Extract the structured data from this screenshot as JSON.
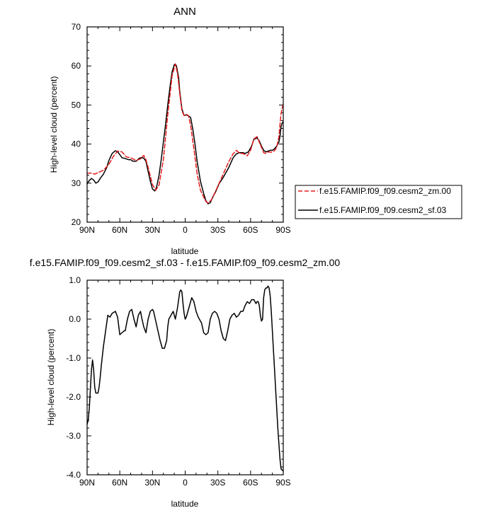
{
  "chart_data": [
    {
      "type": "line",
      "title": "ANN",
      "xlabel": "latitude",
      "ylabel": "High-level cloud (percent)",
      "xlim": [
        90,
        -90
      ],
      "ylim": [
        20,
        70
      ],
      "x_ticks": [
        "90N",
        "60N",
        "30N",
        "0",
        "30S",
        "60S",
        "90S"
      ],
      "y_ticks": [
        "20",
        "30",
        "40",
        "50",
        "60",
        "70"
      ],
      "legend_position": "right",
      "series": [
        {
          "name": "f.e15.FAMIP.f09_f09.cesm2_zm.00",
          "color": "#e41a1c",
          "dash": "dashed",
          "x": [
            90,
            87,
            83,
            80,
            75,
            70,
            66,
            62,
            58,
            54,
            50,
            45,
            41,
            38,
            36,
            34,
            30,
            27,
            24,
            20,
            16,
            12,
            9,
            7,
            5,
            3,
            1,
            -1,
            -3,
            -5,
            -8,
            -11,
            -14,
            -17,
            -19,
            -21,
            -24,
            -28,
            -32,
            -36,
            -40,
            -44,
            -47,
            -50,
            -53,
            -57,
            -60,
            -63,
            -66,
            -68,
            -70,
            -72,
            -74,
            -76,
            -79,
            -82,
            -84,
            -86,
            -87,
            -88,
            -89,
            -90
          ],
          "y": [
            32.5,
            32.6,
            32.3,
            32.7,
            33.3,
            34.8,
            36.8,
            38.2,
            38.0,
            36.7,
            36.5,
            35.8,
            36.2,
            37.1,
            36.0,
            34.0,
            29.6,
            28.2,
            29.5,
            36.0,
            47.5,
            57.5,
            60.5,
            58.0,
            53.0,
            48.5,
            47.3,
            47.6,
            47.3,
            44.8,
            38.8,
            32.3,
            28.2,
            26.4,
            25.3,
            24.9,
            25.7,
            28.0,
            30.5,
            33.0,
            35.5,
            37.5,
            38.4,
            37.6,
            37.6,
            37.0,
            38.4,
            41.3,
            41.9,
            40.5,
            39.2,
            37.8,
            37.6,
            38.0,
            37.9,
            38.3,
            39.2,
            41.8,
            45.0,
            47.8,
            49.2,
            50.3
          ]
        },
        {
          "name": "f.e15.FAMIP.f09_f09.cesm2_sf.03",
          "color": "#000000",
          "dash": "solid",
          "x": [
            90,
            88,
            86,
            84,
            82,
            80,
            78,
            75,
            72,
            70,
            67,
            64,
            62,
            60,
            58,
            55,
            52,
            50,
            48,
            45,
            42,
            40,
            38,
            36,
            34,
            32,
            30,
            28,
            27,
            26,
            24,
            22,
            20,
            18,
            16,
            14,
            12,
            10,
            9,
            8,
            6,
            5,
            3,
            1,
            -1,
            -3,
            -5,
            -7,
            -9,
            -11,
            -14,
            -17,
            -19,
            -21,
            -23,
            -26,
            -28,
            -31,
            -35,
            -40,
            -44,
            -47,
            -50,
            -53,
            -55,
            -58,
            -61,
            -63,
            -66,
            -68,
            -70,
            -72,
            -74,
            -76,
            -78,
            -80,
            -82,
            -84,
            -86,
            -87,
            -88,
            -89,
            -90
          ],
          "y": [
            29.8,
            30.7,
            31.2,
            30.8,
            30.0,
            30.3,
            31.2,
            32.3,
            34.0,
            35.8,
            37.6,
            38.3,
            38.0,
            37.3,
            36.5,
            36.3,
            36.0,
            36.0,
            35.6,
            35.6,
            36.4,
            36.5,
            36.4,
            35.6,
            33.0,
            30.5,
            28.5,
            28.0,
            28.3,
            29.3,
            32.0,
            36.0,
            40.5,
            45.0,
            50.0,
            54.5,
            58.5,
            60.3,
            60.5,
            60.0,
            57.0,
            53.5,
            49.0,
            47.3,
            47.5,
            47.2,
            46.8,
            43.8,
            40.0,
            35.5,
            30.5,
            27.3,
            25.5,
            24.7,
            25.0,
            26.8,
            27.8,
            29.8,
            31.5,
            34.0,
            36.5,
            37.5,
            37.8,
            37.8,
            37.6,
            38.0,
            39.5,
            41.2,
            41.6,
            40.8,
            39.5,
            38.4,
            38.0,
            38.2,
            38.4,
            38.4,
            38.8,
            39.5,
            40.5,
            42.0,
            44.5,
            45.4,
            45.7
          ]
        }
      ]
    },
    {
      "type": "line",
      "title": "f.e15.FAMIP.f09_f09.cesm2_sf.03 - f.e15.FAMIP.f09_f09.cesm2_zm.00",
      "xlabel": "latitude",
      "ylabel": "High-level cloud (percent)",
      "xlim": [
        90,
        -90
      ],
      "ylim": [
        -4.0,
        1.0
      ],
      "x_ticks": [
        "90N",
        "60N",
        "30N",
        "0",
        "30S",
        "60S",
        "90S"
      ],
      "y_ticks": [
        "-4.0",
        "-3.0",
        "-2.0",
        "-1.0",
        "0.0",
        "1.0"
      ],
      "series": [
        {
          "color": "#000000",
          "x": [
            90,
            89,
            88,
            87,
            86,
            85,
            84,
            83,
            82,
            81,
            80,
            79,
            78,
            77,
            75,
            73,
            71,
            69,
            67,
            64,
            62,
            60,
            58,
            56,
            55,
            53,
            51,
            49,
            47,
            45,
            43,
            41,
            40,
            38,
            36,
            34,
            32,
            30,
            29,
            27,
            25,
            23,
            21,
            19,
            17,
            16,
            15,
            13,
            11,
            9,
            7,
            5,
            4,
            3,
            2,
            1,
            0,
            -1,
            -2,
            -4,
            -6,
            -8,
            -10,
            -12,
            -13,
            -15,
            -17,
            -19,
            -21,
            -23,
            -25,
            -27,
            -29,
            -31,
            -33,
            -35,
            -37,
            -39,
            -41,
            -43,
            -45,
            -47,
            -49,
            -51,
            -53,
            -55,
            -57,
            -59,
            -61,
            -63,
            -64,
            -65,
            -66,
            -67,
            -68,
            -69,
            -70,
            -71,
            -72,
            -73,
            -74,
            -75,
            -76,
            -77,
            -78,
            -79,
            -80,
            -81,
            -82,
            -83,
            -84,
            -85,
            -86,
            -87,
            -88,
            -89,
            -90
          ],
          "y": [
            -2.7,
            -2.6,
            -2.3,
            -1.8,
            -1.3,
            -1.05,
            -1.3,
            -1.75,
            -1.9,
            -1.9,
            -1.9,
            -1.75,
            -1.5,
            -1.2,
            -0.7,
            -0.3,
            0.1,
            0.05,
            0.15,
            0.2,
            0.05,
            -0.4,
            -0.35,
            -0.3,
            -0.3,
            0.0,
            0.2,
            0.25,
            0.0,
            -0.2,
            0.1,
            0.2,
            0.05,
            -0.2,
            -0.35,
            0.0,
            0.2,
            0.25,
            0.2,
            -0.05,
            -0.3,
            -0.55,
            -0.75,
            -0.75,
            -0.55,
            -0.2,
            0.0,
            0.1,
            0.2,
            0.0,
            0.3,
            0.7,
            0.75,
            0.7,
            0.4,
            0.15,
            0.0,
            0.05,
            0.15,
            0.35,
            0.55,
            0.45,
            0.2,
            0.05,
            0.0,
            -0.1,
            -0.35,
            -0.4,
            -0.35,
            0.0,
            0.15,
            0.2,
            0.15,
            0.0,
            -0.3,
            -0.5,
            -0.55,
            -0.3,
            0.0,
            0.1,
            0.15,
            0.05,
            0.1,
            0.2,
            0.2,
            0.35,
            0.45,
            0.4,
            0.5,
            0.5,
            0.45,
            0.4,
            0.45,
            0.45,
            0.35,
            0.1,
            -0.05,
            0.0,
            0.55,
            0.75,
            0.8,
            0.8,
            0.85,
            0.8,
            0.6,
            0.2,
            -0.3,
            -0.8,
            -1.3,
            -1.8,
            -2.3,
            -2.8,
            -3.2,
            -3.6,
            -3.85,
            -3.88,
            -3.9
          ]
        }
      ]
    }
  ]
}
